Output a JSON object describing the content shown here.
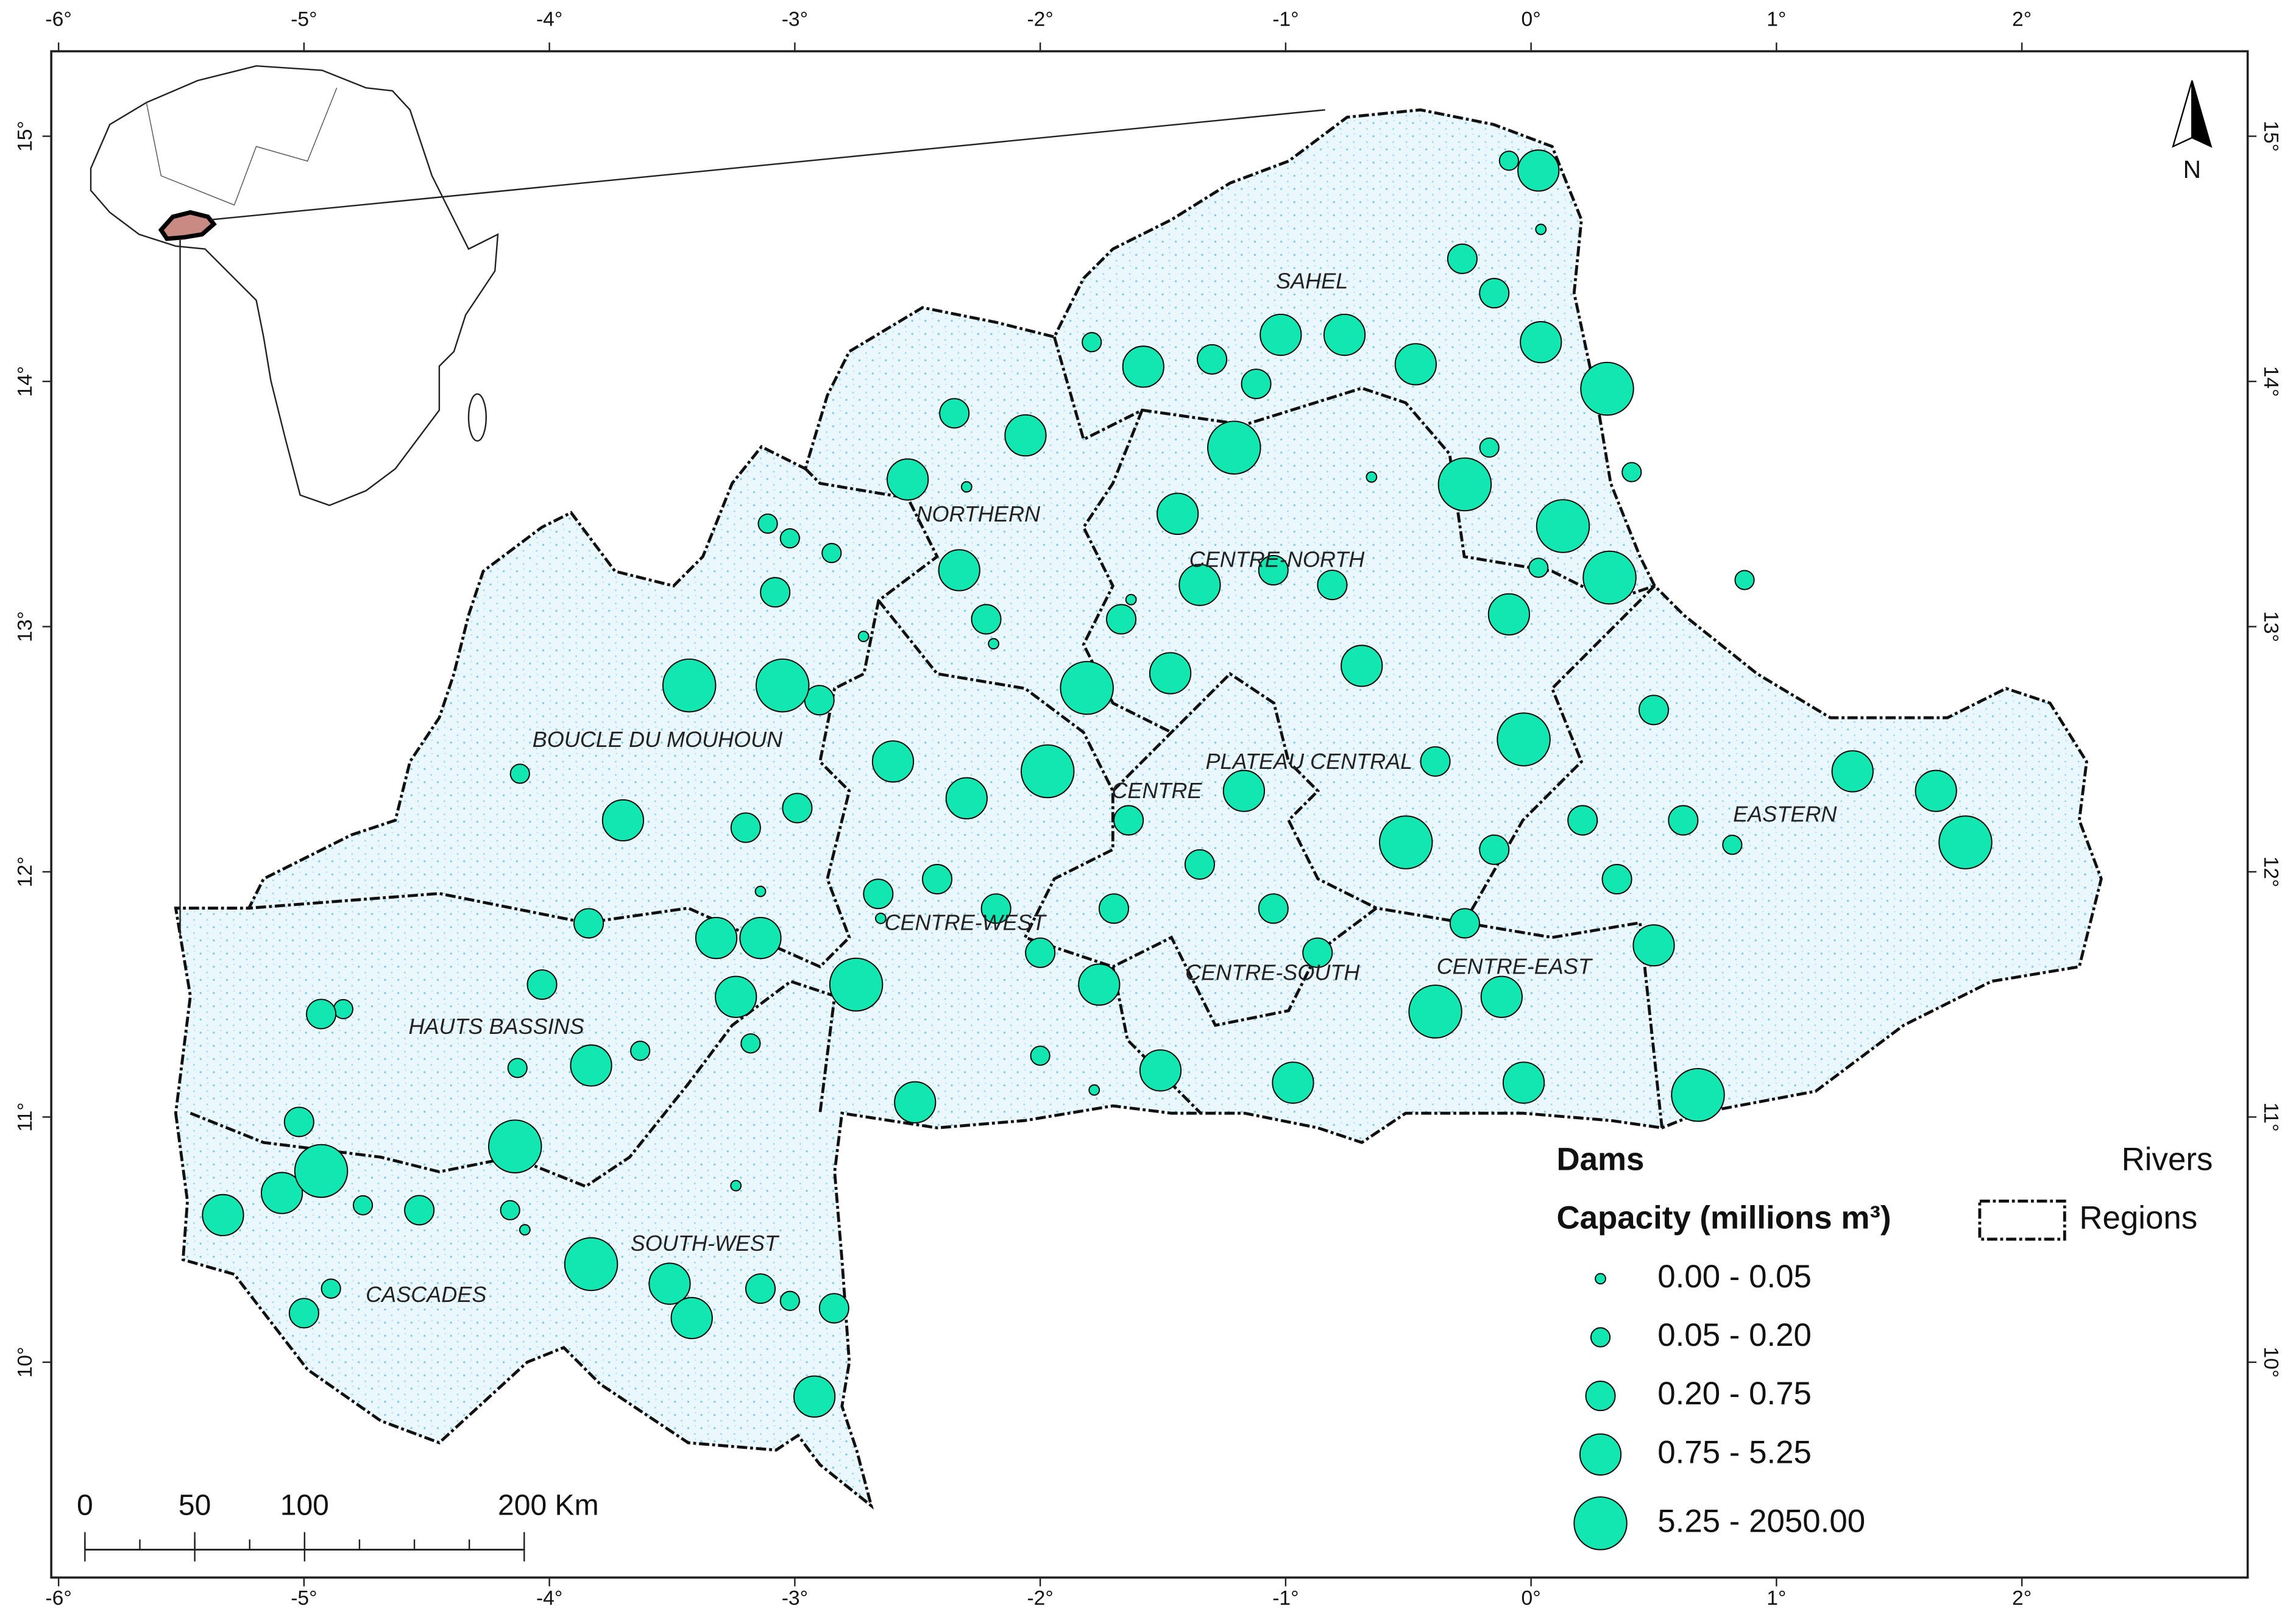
{
  "axes": {
    "lon_ticks": [
      {
        "value": -6,
        "label": "-6°"
      },
      {
        "value": -5,
        "label": "-5°"
      },
      {
        "value": -4,
        "label": "-4°"
      },
      {
        "value": -3,
        "label": "-3°"
      },
      {
        "value": -2,
        "label": "-2°"
      },
      {
        "value": -1,
        "label": "-1°"
      },
      {
        "value": 0,
        "label": "0°"
      },
      {
        "value": 1,
        "label": "1°"
      },
      {
        "value": 2,
        "label": "2°"
      }
    ],
    "lat_ticks": [
      {
        "value": 10,
        "label": "10°"
      },
      {
        "value": 11,
        "label": "11°"
      },
      {
        "value": 12,
        "label": "12°"
      },
      {
        "value": 13,
        "label": "13°"
      },
      {
        "value": 14,
        "label": "14°"
      },
      {
        "value": 15,
        "label": "15°"
      }
    ]
  },
  "north_arrow": "N",
  "regions": [
    "SAHEL",
    "NORTHERN",
    "CENTRE-NORTH",
    "BOUCLE DU MOUHOUN",
    "PLATEAU CENTRAL",
    "CENTRE",
    "EASTERN",
    "CENTRE-WEST",
    "CENTRE-SOUTH",
    "CENTRE-EAST",
    "HAUTS BASSINS",
    "SOUTH-WEST",
    "CASCADES"
  ],
  "legend": {
    "dams_title": "Dams",
    "capacity_title": "Capacity (millions m³)",
    "rivers": "Rivers",
    "regions": "Regions",
    "classes": [
      {
        "label": "0.00 - 0.05",
        "dams": {
          "lon": [
            0.04,
            -0.65,
            -3.14,
            -4.1,
            -3.24,
            -1.78,
            -2.3,
            -2.19,
            -1.63,
            -2.65,
            -2.72
          ],
          "lat": [
            14.62,
            13.61,
            11.92,
            10.54,
            10.72,
            11.11,
            13.57,
            12.93,
            13.11,
            11.81,
            12.96
          ]
        }
      },
      {
        "label": "0.05 - 0.20",
        "dams": {
          "lon": [
            -0.09,
            -1.79,
            0.41,
            -3.02,
            -2.85,
            -3.11,
            -4.12,
            -4.84,
            -3.63,
            -4.13,
            -4.76,
            -4.16,
            -4.89,
            -3.02,
            -3.18,
            -2.0,
            0.03,
            -0.17,
            0.82,
            0.87
          ],
          "lat": [
            14.9,
            14.16,
            13.63,
            13.36,
            13.3,
            13.42,
            12.4,
            11.44,
            11.27,
            11.2,
            10.64,
            10.62,
            10.3,
            10.25,
            11.3,
            11.25,
            13.24,
            13.73,
            12.11,
            13.19
          ]
        }
      },
      {
        "label": "0.20 - 0.75",
        "dams": {
          "lon": [
            -0.28,
            -0.15,
            -1.3,
            -1.12,
            0.5,
            -5.0,
            -4.53,
            -4.03,
            -5.02,
            -3.14,
            -2.84,
            -3.84,
            -4.93,
            -2.35,
            -2.22,
            -3.08,
            -2.9,
            -3.2,
            -2.99,
            -1.05,
            -0.81,
            -0.39,
            -2.66,
            -2.18,
            -2.0,
            -1.7,
            -1.35,
            -1.05,
            -0.87,
            -0.27,
            0.21,
            0.35,
            0.62,
            -0.15,
            -1.64,
            -2.42,
            -1.67
          ],
          "lat": [
            14.5,
            14.36,
            14.09,
            13.99,
            12.66,
            10.2,
            10.62,
            11.54,
            10.98,
            10.3,
            10.22,
            11.79,
            11.42,
            13.87,
            13.03,
            13.14,
            12.7,
            12.18,
            12.26,
            13.23,
            13.17,
            12.45,
            11.91,
            11.85,
            11.67,
            11.85,
            12.03,
            11.85,
            11.67,
            11.79,
            12.21,
            11.97,
            12.21,
            12.09,
            12.21,
            11.97,
            13.03
          ]
        }
      },
      {
        "label": "0.75 - 5.25",
        "dams": {
          "lon": [
            0.03,
            -0.76,
            -0.47,
            -1.02,
            0.04,
            -1.58,
            -2.06,
            -2.54,
            -2.33,
            1.65,
            1.31,
            -3.7,
            -3.83,
            -3.24,
            -3.32,
            -3.14,
            -2.51,
            -0.97,
            -1.51,
            -1.76,
            -3.51,
            -3.42,
            -2.92,
            -5.33,
            -5.09,
            -2.3,
            -2.6,
            -1.47,
            -1.17,
            -0.09,
            -1.44,
            0.5,
            -0.03,
            -0.12,
            -0.69,
            -1.35
          ],
          "lat": [
            14.86,
            14.19,
            14.07,
            14.19,
            14.16,
            14.06,
            13.78,
            13.6,
            13.23,
            12.33,
            12.41,
            12.21,
            11.21,
            11.49,
            11.73,
            11.73,
            11.06,
            11.14,
            11.19,
            11.54,
            10.32,
            10.18,
            9.86,
            10.6,
            10.69,
            12.3,
            12.45,
            12.81,
            12.33,
            13.05,
            13.46,
            11.7,
            11.14,
            11.49,
            12.84,
            13.17
          ]
        }
      },
      {
        "label": "5.25 - 2050.00",
        "dams": {
          "lon": [
            -3.43,
            -3.05,
            -1.97,
            0.31,
            0.13,
            0.32,
            -0.27,
            1.77,
            0.68,
            -2.75,
            -4.14,
            -3.83,
            -4.93,
            -1.81,
            -0.03,
            -0.51,
            -1.21,
            -0.39
          ],
          "lat": [
            12.76,
            12.76,
            12.41,
            13.97,
            13.41,
            13.2,
            13.58,
            12.12,
            11.09,
            11.54,
            10.88,
            10.4,
            10.78,
            12.75,
            12.54,
            12.12,
            13.73,
            11.43
          ]
        }
      }
    ]
  },
  "scale_bar": {
    "ticks": [
      {
        "value": 0,
        "label": "0"
      },
      {
        "value": 50,
        "label": "50"
      },
      {
        "value": 100,
        "label": "100"
      },
      {
        "value": 200,
        "label": "200 Km"
      }
    ]
  }
}
